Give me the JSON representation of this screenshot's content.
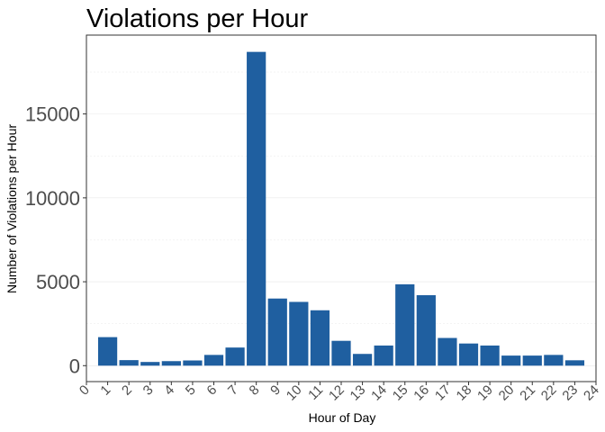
{
  "chart_data": {
    "type": "bar",
    "title": "Violations per Hour",
    "xlabel": "Hour of Day",
    "ylabel": "Number of Violations per Hour",
    "x": [
      1,
      2,
      3,
      4,
      5,
      6,
      7,
      8,
      9,
      10,
      11,
      12,
      13,
      14,
      15,
      16,
      17,
      18,
      19,
      20,
      21,
      22,
      23
    ],
    "values": [
      1700,
      330,
      220,
      270,
      310,
      640,
      1080,
      18700,
      4000,
      3800,
      3300,
      1480,
      700,
      1200,
      4850,
      4200,
      1650,
      1320,
      1200,
      600,
      600,
      640,
      320
    ],
    "x_ticks": [
      "0",
      "1",
      "2",
      "3",
      "4",
      "5",
      "6",
      "7",
      "8",
      "9",
      "10",
      "11",
      "12",
      "13",
      "14",
      "15",
      "16",
      "17",
      "18",
      "19",
      "20",
      "21",
      "22",
      "23",
      "24"
    ],
    "y_ticks": [
      "0",
      "5000",
      "10000",
      "15000"
    ],
    "xlim": [
      0,
      24
    ],
    "ylim": [
      -950,
      19700
    ],
    "bar_color": "#1f5fa0",
    "grid": true,
    "legend": "none"
  }
}
